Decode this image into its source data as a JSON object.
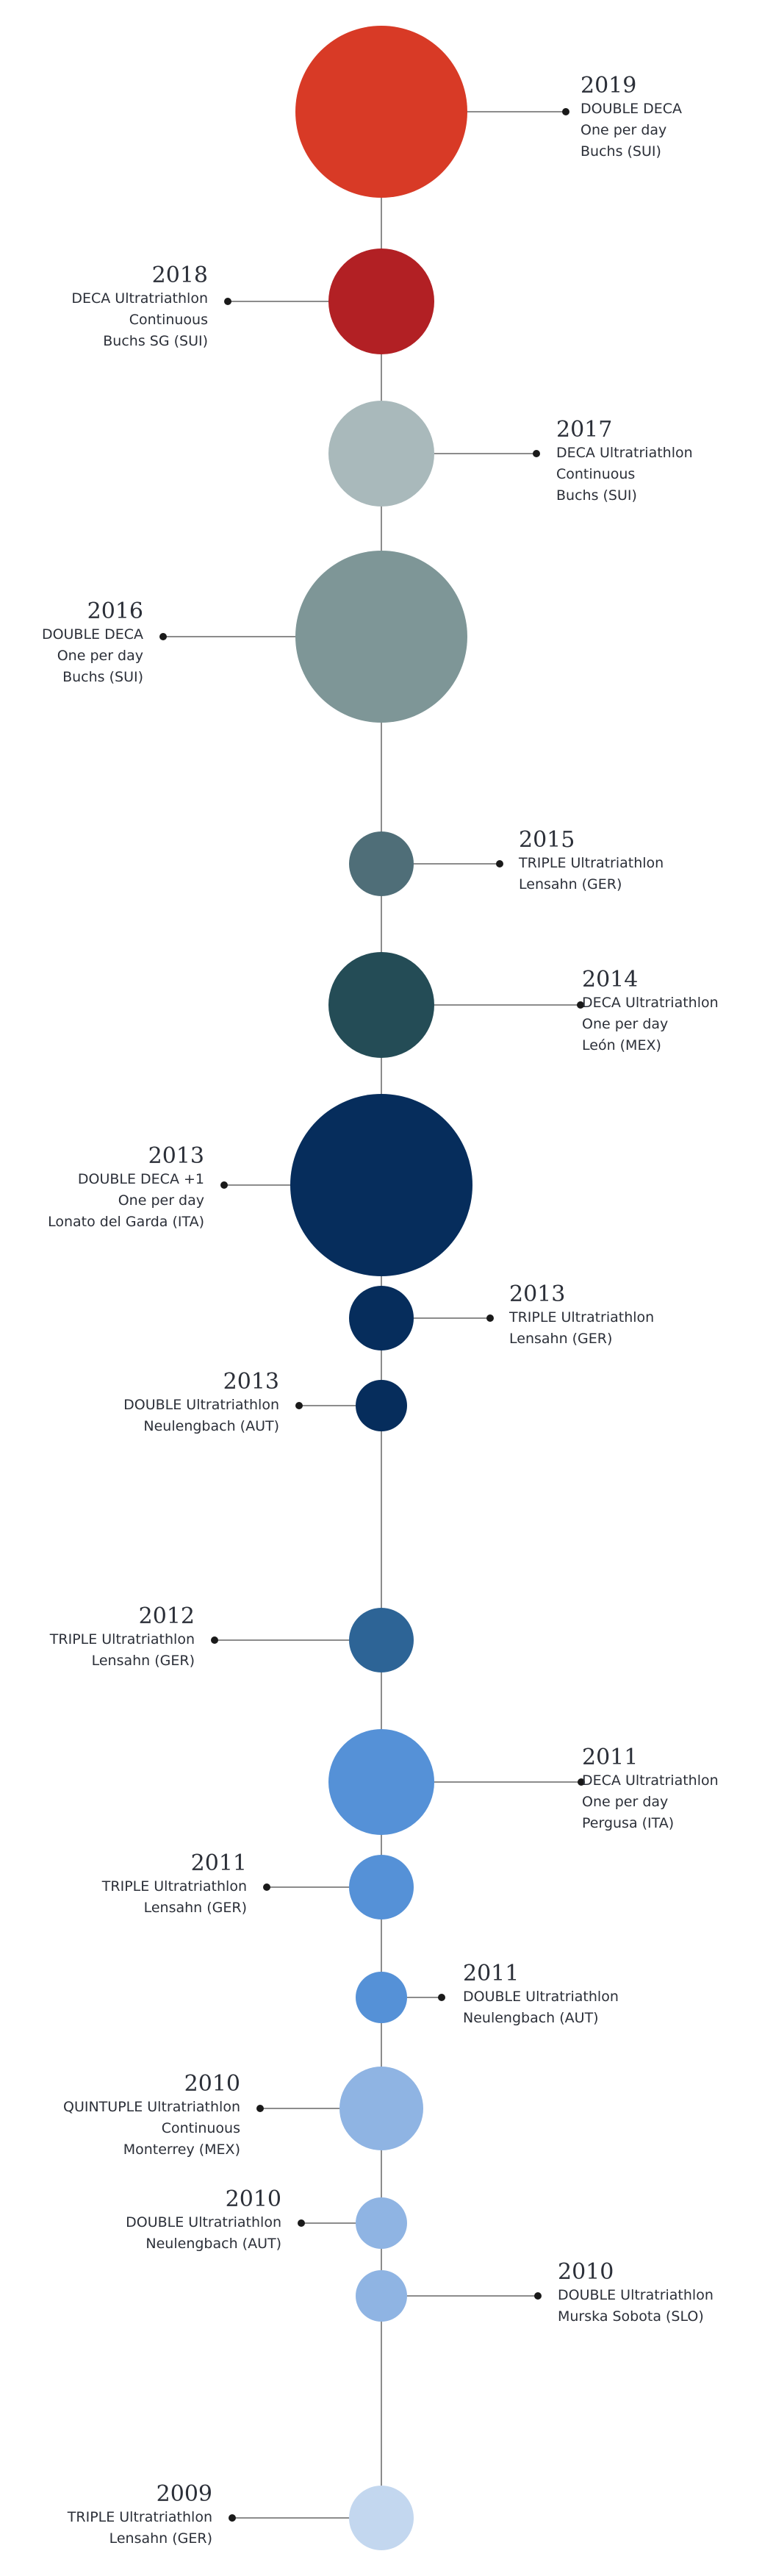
{
  "colors": {
    "line": "#8c8c8c",
    "dot": "#1a1a1a"
  },
  "events": [
    {
      "year": "2019",
      "lines": [
        "DOUBLE DECA",
        "One per day",
        "Buchs (SUI)"
      ],
      "side": "right",
      "color": "#d83a26"
    },
    {
      "year": "2018",
      "lines": [
        "DECA Ultratriathlon",
        "Continuous",
        "Buchs SG (SUI)"
      ],
      "side": "left",
      "color": "#b22024"
    },
    {
      "year": "2017",
      "lines": [
        "DECA Ultratriathlon",
        "Continuous",
        "Buchs (SUI)"
      ],
      "side": "right",
      "color": "#a9b9bb"
    },
    {
      "year": "2016",
      "lines": [
        "DOUBLE DECA",
        "One per day",
        "Buchs (SUI)"
      ],
      "side": "left",
      "color": "#7e9697"
    },
    {
      "year": "2015",
      "lines": [
        "TRIPLE Ultratriathlon",
        "Lensahn (GER)"
      ],
      "side": "right",
      "color": "#4f6e78"
    },
    {
      "year": "2014",
      "lines": [
        "DECA Ultratriathlon",
        "One per day",
        "León (MEX)"
      ],
      "side": "right",
      "color": "#244c56"
    },
    {
      "year": "2013",
      "lines": [
        "DOUBLE DECA +1",
        "One per day",
        "Lonato del Garda (ITA)"
      ],
      "side": "left",
      "color": "#062d5c"
    },
    {
      "year": "2013",
      "lines": [
        "TRIPLE Ultratriathlon",
        "Lensahn (GER)"
      ],
      "side": "right",
      "color": "#062d5c"
    },
    {
      "year": "2013",
      "lines": [
        "DOUBLE Ultratriathlon",
        "Neulengbach (AUT)"
      ],
      "side": "left",
      "color": "#062d5c"
    },
    {
      "year": "2012",
      "lines": [
        "TRIPLE Ultratriathlon",
        "Lensahn (GER)"
      ],
      "side": "left",
      "color": "#2d6496"
    },
    {
      "year": "2011",
      "lines": [
        "DECA Ultratriathlon",
        "One per day",
        "Pergusa (ITA)"
      ],
      "side": "right",
      "color": "#5591d7"
    },
    {
      "year": "2011",
      "lines": [
        "TRIPLE Ultratriathlon",
        "Lensahn (GER)"
      ],
      "side": "left",
      "color": "#5591d7"
    },
    {
      "year": "2011",
      "lines": [
        "DOUBLE Ultratriathlon",
        "Neulengbach (AUT)"
      ],
      "side": "right",
      "color": "#5591d7"
    },
    {
      "year": "2010",
      "lines": [
        "QUINTUPLE Ultratriathlon",
        "Continuous",
        "Monterrey (MEX)"
      ],
      "side": "left",
      "color": "#8fb4e3"
    },
    {
      "year": "2010",
      "lines": [
        "DOUBLE Ultratriathlon",
        "Neulengbach (AUT)"
      ],
      "side": "left",
      "color": "#8fb4e3"
    },
    {
      "year": "2010",
      "lines": [
        "DOUBLE Ultratriathlon",
        "Murska Sobota (SLO)"
      ],
      "side": "right",
      "color": "#8fb4e3"
    },
    {
      "year": "2009",
      "lines": [
        "TRIPLE Ultratriathlon",
        "Lensahn (GER)"
      ],
      "side": "left",
      "color": "#c3d7ef"
    }
  ]
}
